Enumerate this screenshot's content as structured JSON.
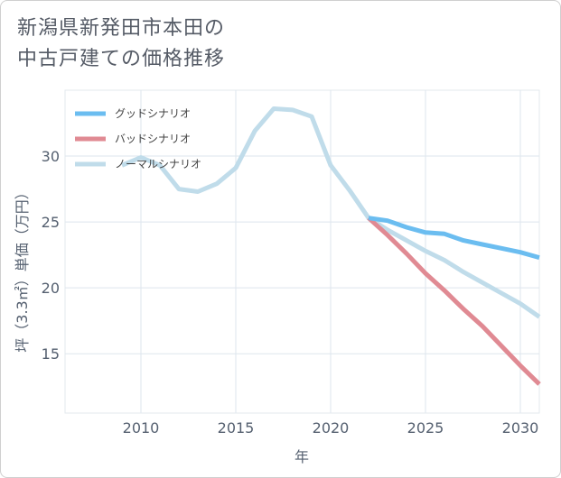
{
  "title_lines": [
    "新潟県新発田市本田の",
    "中古戸建ての価格推移"
  ],
  "chart_data": {
    "type": "line",
    "xlabel": "年",
    "ylabel": "坪（3.3㎡）単価（万円）",
    "xlim": [
      2006,
      2031
    ],
    "ylim": [
      10.5,
      35
    ],
    "xticks": [
      2010,
      2015,
      2020,
      2025,
      2030
    ],
    "yticks": [
      15,
      20,
      25,
      30
    ],
    "grid": true,
    "legend_position": "top-left",
    "series": [
      {
        "name": "グッドシナリオ",
        "color": "#6bbdf0",
        "x": [
          2022,
          2023,
          2024,
          2025,
          2026,
          2027,
          2028,
          2029,
          2030,
          2031
        ],
        "y": [
          25.3,
          25.1,
          24.6,
          24.2,
          24.1,
          23.6,
          23.3,
          23.0,
          22.7,
          22.3
        ]
      },
      {
        "name": "バッドシナリオ",
        "color": "#e08a93",
        "x": [
          2022,
          2023,
          2024,
          2025,
          2026,
          2027,
          2028,
          2029,
          2030,
          2031
        ],
        "y": [
          25.3,
          24.0,
          22.6,
          21.1,
          19.8,
          18.4,
          17.1,
          15.6,
          14.1,
          12.7
        ]
      },
      {
        "name": "ノーマルシナリオ",
        "color": "#c0dcea",
        "x": [
          2009,
          2010,
          2011,
          2012,
          2013,
          2014,
          2015,
          2016,
          2017,
          2018,
          2019,
          2020,
          2021,
          2022,
          2023,
          2024,
          2025,
          2026,
          2027,
          2028,
          2029,
          2030,
          2031
        ],
        "y": [
          29.3,
          29.9,
          29.3,
          27.5,
          27.3,
          27.9,
          29.1,
          31.9,
          33.6,
          33.5,
          33.0,
          29.3,
          27.4,
          25.3,
          24.4,
          23.6,
          22.8,
          22.1,
          21.2,
          20.4,
          19.6,
          18.8,
          17.8
        ]
      }
    ]
  }
}
